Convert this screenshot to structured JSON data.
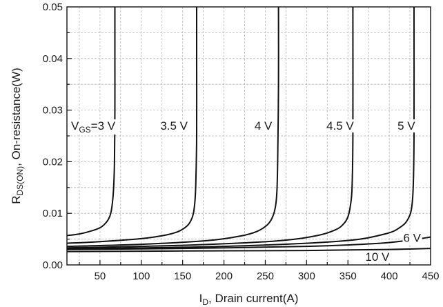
{
  "chart_data": {
    "type": "line",
    "xlabel": {
      "main": "I",
      "sub": "D",
      "rest": ", Drain current(A)"
    },
    "ylabel": {
      "main": "R",
      "sub": "DS(ON)",
      "rest": ", On-resistance(W)"
    },
    "xlim": [
      10,
      450
    ],
    "ylim": [
      0,
      0.05
    ],
    "x_ticks": [
      50,
      100,
      150,
      200,
      250,
      300,
      350,
      400,
      450
    ],
    "x_tick_labels": [
      "50",
      "100",
      "150",
      "200",
      "250",
      "300",
      "350",
      "400",
      "450"
    ],
    "y_ticks": [
      0,
      0.01,
      0.02,
      0.03,
      0.04,
      0.05
    ],
    "y_tick_labels": [
      "0.00",
      "0.01",
      "0.02",
      "0.03",
      "0.04",
      "0.05"
    ],
    "grid": true,
    "series": [
      {
        "name": "VGS=3 V",
        "label": {
          "main": "V",
          "sub": "GS",
          "rest": "=3 V"
        },
        "label_at": [
          15,
          0.0262
        ],
        "x": [
          10,
          25,
          40,
          50,
          55,
          60,
          63,
          65,
          66.5,
          67.5,
          68,
          68,
          68
        ],
        "y": [
          0.0057,
          0.006,
          0.0066,
          0.0072,
          0.0078,
          0.0088,
          0.01,
          0.012,
          0.015,
          0.02,
          0.03,
          0.04,
          0.05
        ]
      },
      {
        "name": "3.5 V",
        "label": {
          "main": "3.5 V",
          "sub": "",
          "rest": ""
        },
        "label_at": [
          123,
          0.0262
        ],
        "x": [
          10,
          50,
          100,
          130,
          145,
          155,
          160,
          163,
          165,
          166,
          167,
          167,
          167
        ],
        "y": [
          0.0042,
          0.0045,
          0.0051,
          0.0058,
          0.0065,
          0.0075,
          0.0086,
          0.01,
          0.0125,
          0.016,
          0.025,
          0.04,
          0.05
        ]
      },
      {
        "name": "4 V",
        "label": {
          "main": "4 V",
          "sub": "",
          "rest": ""
        },
        "label_at": [
          237,
          0.0262
        ],
        "x": [
          10,
          100,
          180,
          220,
          240,
          252,
          258,
          262,
          264,
          265,
          266,
          266
        ],
        "y": [
          0.0036,
          0.004,
          0.0047,
          0.0056,
          0.0065,
          0.0077,
          0.009,
          0.011,
          0.014,
          0.02,
          0.035,
          0.05
        ]
      },
      {
        "name": "4.5 V",
        "label": {
          "main": "4.5 V",
          "sub": "",
          "rest": ""
        },
        "label_at": [
          324,
          0.0262
        ],
        "x": [
          10,
          150,
          260,
          310,
          335,
          345,
          350,
          353,
          355,
          356,
          356
        ],
        "y": [
          0.0033,
          0.0038,
          0.0046,
          0.0056,
          0.0068,
          0.008,
          0.0093,
          0.0115,
          0.015,
          0.025,
          0.05
        ]
      },
      {
        "name": "5 V",
        "label": {
          "main": "5 V",
          "sub": "",
          "rest": ""
        },
        "label_at": [
          410,
          0.0262
        ],
        "x": [
          10,
          200,
          340,
          395,
          415,
          423,
          427,
          429,
          430,
          430
        ],
        "y": [
          0.0031,
          0.0036,
          0.0046,
          0.006,
          0.0075,
          0.009,
          0.011,
          0.015,
          0.025,
          0.05
        ]
      },
      {
        "name": "6 V",
        "label": {
          "main": "6 V",
          "sub": "",
          "rest": ""
        },
        "label_at": [
          417,
          0.0045
        ],
        "x": [
          10,
          150,
          300,
          380,
          420,
          450
        ],
        "y": [
          0.003,
          0.0032,
          0.0036,
          0.0041,
          0.0047,
          0.0054
        ]
      },
      {
        "name": "10 V",
        "label": {
          "main": "10 V",
          "sub": "",
          "rest": ""
        },
        "label_at": [
          371,
          0.0008
        ],
        "x": [
          10,
          150,
          300,
          400,
          450
        ],
        "y": [
          0.0026,
          0.0027,
          0.0028,
          0.003,
          0.0032
        ]
      }
    ]
  }
}
